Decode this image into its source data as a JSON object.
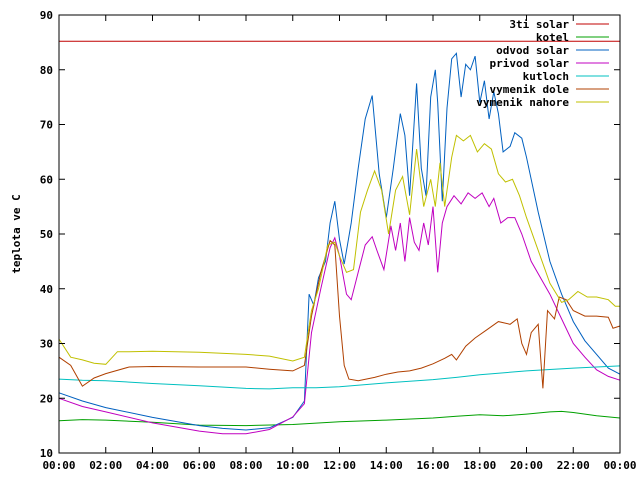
{
  "chart_data": {
    "type": "line",
    "title": "",
    "xlabel": "",
    "ylabel": "teplota ve C",
    "xlim": [
      0,
      24
    ],
    "ylim": [
      10,
      90
    ],
    "x_ticks": [
      0,
      2,
      4,
      6,
      8,
      10,
      12,
      14,
      16,
      18,
      20,
      22,
      24
    ],
    "x_tick_labels": [
      "00:00",
      "02:00",
      "04:00",
      "06:00",
      "08:00",
      "10:00",
      "12:00",
      "14:00",
      "16:00",
      "18:00",
      "20:00",
      "22:00",
      "00:00"
    ],
    "y_ticks": [
      10,
      20,
      30,
      40,
      50,
      60,
      70,
      80,
      90
    ],
    "y_tick_labels": [
      "10",
      "20",
      "30",
      "40",
      "50",
      "60",
      "70",
      "80",
      "90"
    ],
    "grid": false,
    "legend_position": "top-right",
    "series": [
      {
        "name": "3ti solar",
        "color": "#c00000",
        "points": [
          [
            0,
            85.2
          ],
          [
            24,
            85.2
          ]
        ]
      },
      {
        "name": "kotel",
        "color": "#00a000",
        "points": [
          [
            0,
            15.9
          ],
          [
            1,
            16.1
          ],
          [
            2,
            16
          ],
          [
            4,
            15.6
          ],
          [
            6,
            15.1
          ],
          [
            8,
            15
          ],
          [
            10,
            15.2
          ],
          [
            12,
            15.7
          ],
          [
            14,
            16
          ],
          [
            16,
            16.4
          ],
          [
            17,
            16.7
          ],
          [
            18,
            17
          ],
          [
            19,
            16.8
          ],
          [
            20,
            17.1
          ],
          [
            21,
            17.5
          ],
          [
            21.5,
            17.6
          ],
          [
            22,
            17.4
          ],
          [
            23,
            16.8
          ],
          [
            24,
            16.4
          ]
        ]
      },
      {
        "name": "odvod solar",
        "color": "#0060c0",
        "points": [
          [
            0,
            21
          ],
          [
            1,
            19.5
          ],
          [
            2,
            18.3
          ],
          [
            4,
            16.5
          ],
          [
            6,
            15
          ],
          [
            7,
            14.5
          ],
          [
            8,
            14.2
          ],
          [
            9,
            14.6
          ],
          [
            10,
            16.5
          ],
          [
            10.5,
            19.5
          ],
          [
            10.7,
            39
          ],
          [
            10.9,
            37
          ],
          [
            11.1,
            42
          ],
          [
            11.4,
            45
          ],
          [
            11.6,
            52
          ],
          [
            11.8,
            56
          ],
          [
            12,
            49
          ],
          [
            12.2,
            44.5
          ],
          [
            12.5,
            52
          ],
          [
            12.8,
            62
          ],
          [
            13.1,
            71
          ],
          [
            13.4,
            75.3
          ],
          [
            13.7,
            61
          ],
          [
            14,
            53
          ],
          [
            14.3,
            62
          ],
          [
            14.6,
            72
          ],
          [
            14.8,
            68
          ],
          [
            15,
            57
          ],
          [
            15.3,
            77.5
          ],
          [
            15.5,
            62
          ],
          [
            15.7,
            57
          ],
          [
            15.9,
            75
          ],
          [
            16.1,
            80
          ],
          [
            16.2,
            74
          ],
          [
            16.4,
            56
          ],
          [
            16.6,
            73
          ],
          [
            16.8,
            82
          ],
          [
            17,
            83
          ],
          [
            17.2,
            75
          ],
          [
            17.4,
            81
          ],
          [
            17.6,
            80
          ],
          [
            17.8,
            82.5
          ],
          [
            18,
            74
          ],
          [
            18.2,
            78
          ],
          [
            18.4,
            71
          ],
          [
            18.6,
            76
          ],
          [
            18.8,
            72
          ],
          [
            19,
            65
          ],
          [
            19.3,
            66
          ],
          [
            19.5,
            68.5
          ],
          [
            19.8,
            67.5
          ],
          [
            20,
            64
          ],
          [
            20.5,
            54
          ],
          [
            21,
            45
          ],
          [
            21.5,
            39
          ],
          [
            22,
            34
          ],
          [
            22.5,
            30.5
          ],
          [
            23,
            28
          ],
          [
            23.5,
            25.5
          ],
          [
            24,
            24.4
          ]
        ]
      },
      {
        "name": "privod solar",
        "color": "#c000c0",
        "points": [
          [
            0,
            20
          ],
          [
            1,
            18.5
          ],
          [
            2,
            17.5
          ],
          [
            4,
            15.5
          ],
          [
            6,
            14
          ],
          [
            7,
            13.5
          ],
          [
            8,
            13.5
          ],
          [
            9,
            14.3
          ],
          [
            10,
            16.6
          ],
          [
            10.5,
            19
          ],
          [
            10.8,
            32
          ],
          [
            11.2,
            40
          ],
          [
            11.6,
            47.5
          ],
          [
            11.8,
            49.3
          ],
          [
            12,
            46
          ],
          [
            12.3,
            39
          ],
          [
            12.5,
            38
          ],
          [
            12.8,
            43
          ],
          [
            13.1,
            48
          ],
          [
            13.4,
            49.5
          ],
          [
            13.6,
            47
          ],
          [
            13.9,
            43.5
          ],
          [
            14.2,
            51.5
          ],
          [
            14.4,
            47
          ],
          [
            14.6,
            52
          ],
          [
            14.8,
            45
          ],
          [
            15,
            53
          ],
          [
            15.2,
            48.5
          ],
          [
            15.4,
            47
          ],
          [
            15.6,
            52
          ],
          [
            15.8,
            48
          ],
          [
            16,
            55
          ],
          [
            16.2,
            43
          ],
          [
            16.4,
            52
          ],
          [
            16.6,
            55
          ],
          [
            16.9,
            57
          ],
          [
            17.2,
            55.5
          ],
          [
            17.5,
            57.5
          ],
          [
            17.8,
            56.5
          ],
          [
            18.1,
            57.5
          ],
          [
            18.4,
            55
          ],
          [
            18.6,
            56.5
          ],
          [
            18.9,
            52
          ],
          [
            19.2,
            53
          ],
          [
            19.5,
            53
          ],
          [
            19.8,
            50
          ],
          [
            20.2,
            45
          ],
          [
            20.6,
            42
          ],
          [
            21,
            39
          ],
          [
            21.5,
            34.5
          ],
          [
            22,
            30
          ],
          [
            22.5,
            27.5
          ],
          [
            23,
            25.2
          ],
          [
            23.5,
            24
          ],
          [
            24,
            23.3
          ]
        ]
      },
      {
        "name": "kutloch",
        "color": "#00c0c0",
        "points": [
          [
            0,
            23.5
          ],
          [
            1,
            23.3
          ],
          [
            2,
            23.2
          ],
          [
            4,
            22.7
          ],
          [
            6,
            22.3
          ],
          [
            8,
            21.8
          ],
          [
            9,
            21.7
          ],
          [
            10,
            21.9
          ],
          [
            11,
            21.9
          ],
          [
            12,
            22.1
          ],
          [
            14,
            22.8
          ],
          [
            16,
            23.4
          ],
          [
            17,
            23.8
          ],
          [
            18,
            24.3
          ],
          [
            20,
            25
          ],
          [
            22,
            25.5
          ],
          [
            24,
            25.9
          ]
        ]
      },
      {
        "name": "vymenik dole",
        "color": "#b04000",
        "points": [
          [
            0,
            27.5
          ],
          [
            0.5,
            26
          ],
          [
            1,
            22.2
          ],
          [
            1.5,
            23.7
          ],
          [
            2,
            24.5
          ],
          [
            3,
            25.7
          ],
          [
            4,
            25.8
          ],
          [
            6,
            25.7
          ],
          [
            8,
            25.7
          ],
          [
            9,
            25.3
          ],
          [
            10,
            25
          ],
          [
            10.5,
            26
          ],
          [
            10.8,
            35
          ],
          [
            11.2,
            43
          ],
          [
            11.6,
            48.8
          ],
          [
            11.8,
            48
          ],
          [
            12,
            35
          ],
          [
            12.2,
            26
          ],
          [
            12.4,
            23.5
          ],
          [
            12.8,
            23.2
          ],
          [
            13.5,
            23.8
          ],
          [
            14,
            24.4
          ],
          [
            14.5,
            24.8
          ],
          [
            15,
            25
          ],
          [
            15.5,
            25.5
          ],
          [
            16,
            26.3
          ],
          [
            16.5,
            27.3
          ],
          [
            16.8,
            28
          ],
          [
            17,
            27
          ],
          [
            17.4,
            29.5
          ],
          [
            17.8,
            31
          ],
          [
            18.3,
            32.5
          ],
          [
            18.8,
            34
          ],
          [
            19.3,
            33.5
          ],
          [
            19.6,
            34.5
          ],
          [
            19.8,
            30
          ],
          [
            20,
            28
          ],
          [
            20.2,
            32
          ],
          [
            20.5,
            33.5
          ],
          [
            20.7,
            21.8
          ],
          [
            20.9,
            36
          ],
          [
            21.2,
            34.5
          ],
          [
            21.4,
            38.5
          ],
          [
            21.7,
            38
          ],
          [
            22,
            36
          ],
          [
            22.5,
            35
          ],
          [
            23,
            35
          ],
          [
            23.5,
            34.8
          ],
          [
            23.7,
            32.8
          ],
          [
            24,
            33.2
          ]
        ]
      },
      {
        "name": "vymenik nahore",
        "color": "#c0c000",
        "points": [
          [
            0,
            30.8
          ],
          [
            0.5,
            27.5
          ],
          [
            1,
            27
          ],
          [
            1.5,
            26.4
          ],
          [
            2,
            26.2
          ],
          [
            2.5,
            28.5
          ],
          [
            3,
            28.5
          ],
          [
            4,
            28.6
          ],
          [
            6,
            28.4
          ],
          [
            8,
            28
          ],
          [
            9,
            27.7
          ],
          [
            10,
            26.8
          ],
          [
            10.5,
            27.5
          ],
          [
            10.8,
            36
          ],
          [
            11.1,
            40
          ],
          [
            11.5,
            48
          ],
          [
            11.8,
            48.5
          ],
          [
            12,
            46
          ],
          [
            12.3,
            43
          ],
          [
            12.6,
            43.5
          ],
          [
            12.9,
            54
          ],
          [
            13.2,
            58
          ],
          [
            13.5,
            61.5
          ],
          [
            13.8,
            58
          ],
          [
            14.1,
            50
          ],
          [
            14.4,
            58
          ],
          [
            14.7,
            60.5
          ],
          [
            15,
            53.5
          ],
          [
            15.3,
            65.5
          ],
          [
            15.6,
            55
          ],
          [
            15.9,
            60
          ],
          [
            16.1,
            55
          ],
          [
            16.3,
            63
          ],
          [
            16.5,
            55
          ],
          [
            16.8,
            64
          ],
          [
            17,
            68
          ],
          [
            17.3,
            67
          ],
          [
            17.6,
            68
          ],
          [
            17.9,
            65
          ],
          [
            18.2,
            66.5
          ],
          [
            18.5,
            65.5
          ],
          [
            18.8,
            61
          ],
          [
            19.1,
            59.5
          ],
          [
            19.4,
            60
          ],
          [
            19.7,
            57
          ],
          [
            20,
            53
          ],
          [
            20.5,
            47
          ],
          [
            21,
            41
          ],
          [
            21.5,
            37.5
          ],
          [
            21.8,
            38
          ],
          [
            22.2,
            39.5
          ],
          [
            22.6,
            38.5
          ],
          [
            23,
            38.5
          ],
          [
            23.5,
            38
          ],
          [
            23.8,
            36.8
          ],
          [
            24,
            36.8
          ]
        ]
      }
    ]
  }
}
